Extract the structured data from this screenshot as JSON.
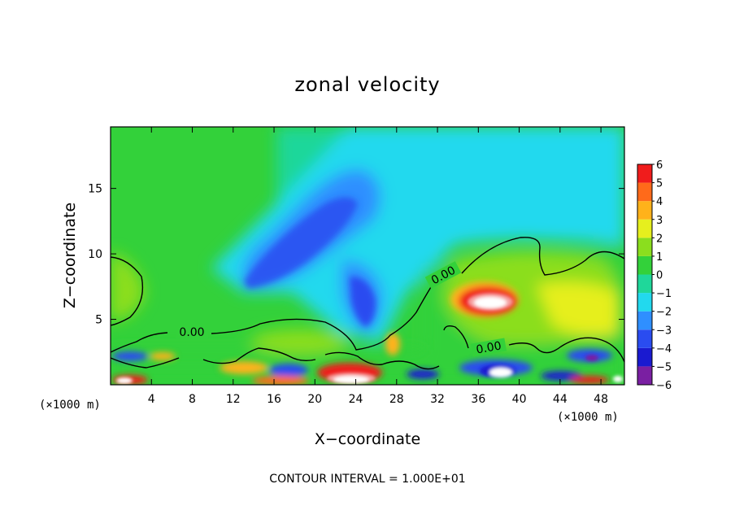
{
  "chart_data": {
    "type": "heatmap",
    "title": "zonal velocity",
    "xlabel": "X−coordinate",
    "ylabel": "Z−coordinate",
    "x_unit_left": "(×1000 m)",
    "x_unit_right": "(×1000 m)",
    "xlim": [
      0,
      50.3
    ],
    "ylim": [
      0,
      19.7
    ],
    "xticks": [
      4,
      8,
      12,
      16,
      20,
      24,
      28,
      32,
      36,
      40,
      44,
      48
    ],
    "xtick_labels": [
      "4",
      "8",
      "12",
      "16",
      "20",
      "24",
      "28",
      "32",
      "36",
      "40",
      "44",
      "48"
    ],
    "yticks": [
      5,
      10,
      15
    ],
    "ytick_labels": [
      "5",
      "10",
      "15"
    ],
    "colorbar": {
      "levels": [
        -6,
        -5,
        -4,
        -3,
        -2,
        -1,
        0,
        1,
        2,
        3,
        4,
        5,
        6
      ],
      "labels": [
        "−6",
        "−5",
        "−4",
        "−3",
        "−2",
        "−1",
        "0",
        "1",
        "2",
        "3",
        "4",
        "5",
        "6"
      ],
      "colors": [
        "#7a1fa2",
        "#1a1ad0",
        "#2a4cf0",
        "#2f8fff",
        "#22d9ee",
        "#1fd79a",
        "#33d13a",
        "#8bde1e",
        "#e6ef1e",
        "#ffb21a",
        "#ff6a1a",
        "#f01c1c",
        "#f6a0a0"
      ]
    },
    "contour_labels": [
      "0.00",
      "0.00",
      "0.00"
    ],
    "features": [
      {
        "kind": "positive_max",
        "x": 36.5,
        "z": 6.5,
        "value": 6
      },
      {
        "kind": "negative_min",
        "x": 24.5,
        "z": 5.5,
        "value": -3.5
      },
      {
        "kind": "negative_min",
        "x": 19.5,
        "z": 11,
        "value": -3
      },
      {
        "kind": "positive_max",
        "x": 24,
        "z": 0.4,
        "value": 6
      },
      {
        "kind": "negative_min",
        "x": 37,
        "z": 1.2,
        "value": -5
      }
    ],
    "grid": false
  },
  "footer": {
    "contour_interval": "CONTOUR INTERVAL = 1.000E+01"
  }
}
